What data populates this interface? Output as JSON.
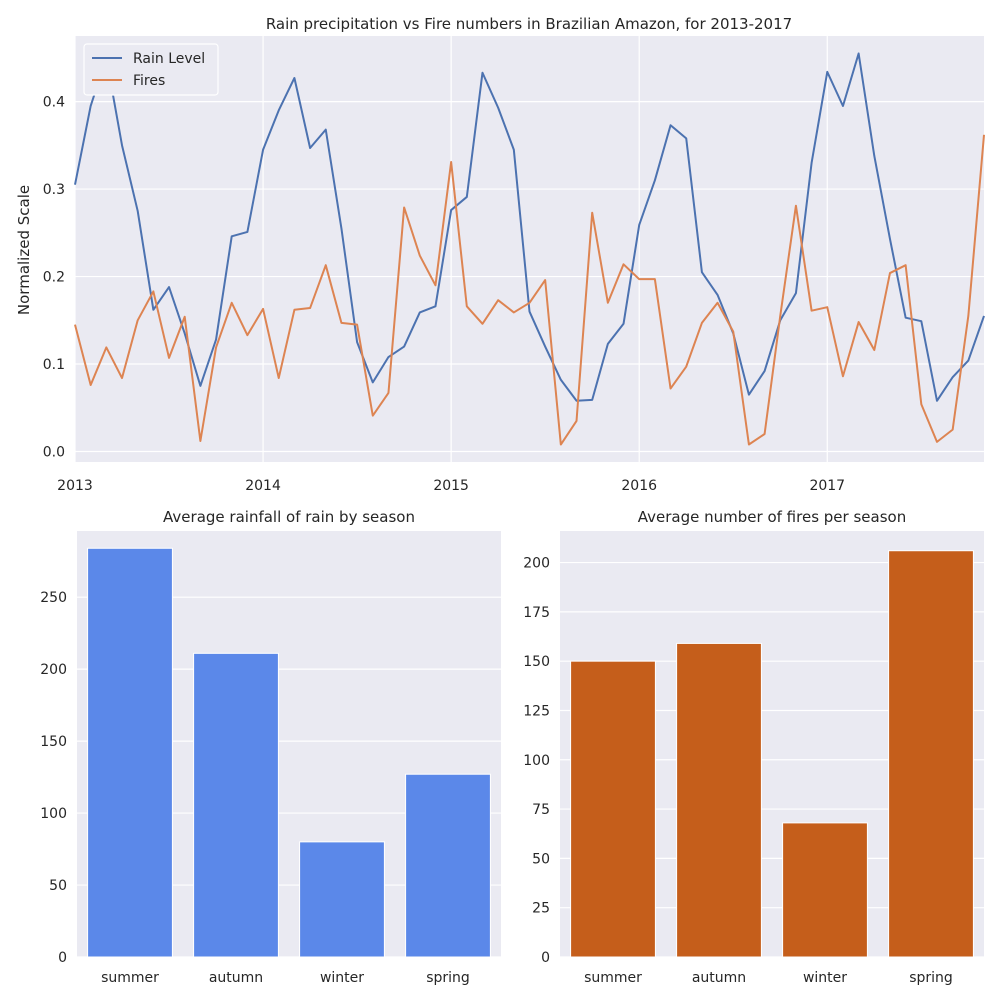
{
  "chart_data": [
    {
      "type": "line",
      "title": "Rain precipitation vs Fire numbers in Brazilian Amazon, for 2013-2017",
      "xlabel": "",
      "ylabel": "Normalized Scale",
      "xlim": [
        "2013-01",
        "2017-11"
      ],
      "ylim": [
        -0.012,
        0.475
      ],
      "x_ticks": [
        "2013",
        "2014",
        "2015",
        "2016",
        "2017"
      ],
      "y_ticks": [
        0.0,
        0.1,
        0.2,
        0.3,
        0.4
      ],
      "grid": true,
      "legend_position": "top-left",
      "series": [
        {
          "name": "Rain Level",
          "color": "#4c72b0",
          "values": [
            0.305,
            0.395,
            0.45,
            0.35,
            0.275,
            0.162,
            0.188,
            0.135,
            0.075,
            0.128,
            0.246,
            0.251,
            0.345,
            0.39,
            0.427,
            0.347,
            0.368,
            0.255,
            0.125,
            0.079,
            0.108,
            0.12,
            0.159,
            0.166,
            0.276,
            0.291,
            0.433,
            0.393,
            0.345,
            0.16,
            0.12,
            0.082,
            0.058,
            0.059,
            0.123,
            0.146,
            0.259,
            0.31,
            0.373,
            0.358,
            0.205,
            0.179,
            0.135,
            0.065,
            0.092,
            0.15,
            0.181,
            0.33,
            0.434,
            0.395,
            0.455,
            0.338,
            0.243,
            0.153,
            0.149,
            0.058,
            0.085,
            0.104,
            0.155
          ]
        },
        {
          "name": "Fires",
          "color": "#dd8452",
          "values": [
            0.145,
            0.076,
            0.119,
            0.084,
            0.15,
            0.183,
            0.107,
            0.154,
            0.012,
            0.119,
            0.17,
            0.133,
            0.163,
            0.084,
            0.162,
            0.164,
            0.213,
            0.147,
            0.145,
            0.041,
            0.067,
            0.279,
            0.224,
            0.19,
            0.331,
            0.166,
            0.146,
            0.173,
            0.159,
            0.17,
            0.196,
            0.008,
            0.035,
            0.273,
            0.17,
            0.214,
            0.197,
            0.197,
            0.072,
            0.097,
            0.147,
            0.17,
            0.137,
            0.008,
            0.02,
            0.155,
            0.281,
            0.161,
            0.165,
            0.086,
            0.148,
            0.116,
            0.204,
            0.213,
            0.054,
            0.011,
            0.025,
            0.155,
            0.362
          ]
        }
      ]
    },
    {
      "type": "bar",
      "title": "Average rainfall of rain by season",
      "xlabel": "",
      "ylabel": "",
      "categories": [
        "summer",
        "autumn",
        "winter",
        "spring"
      ],
      "values": [
        284,
        211,
        80,
        127
      ],
      "ylim": [
        0,
        296
      ],
      "y_ticks": [
        0,
        50,
        100,
        150,
        200,
        250
      ],
      "color": "#5b88e9",
      "grid": true
    },
    {
      "type": "bar",
      "title": "Average number of fires per season",
      "xlabel": "",
      "ylabel": "",
      "categories": [
        "summer",
        "autumn",
        "winter",
        "spring"
      ],
      "values": [
        150,
        159,
        68,
        206
      ],
      "ylim": [
        0,
        216
      ],
      "y_ticks": [
        0,
        25,
        50,
        75,
        100,
        125,
        150,
        175,
        200
      ],
      "color": "#c55e1b",
      "grid": true
    }
  ]
}
